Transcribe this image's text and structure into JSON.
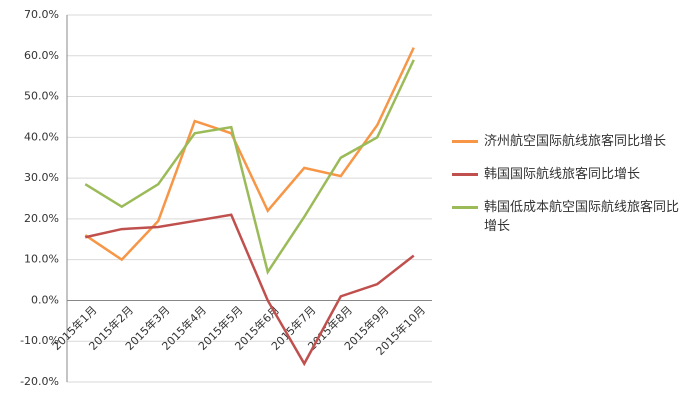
{
  "chart_data": {
    "type": "line",
    "categories": [
      "2015年1月",
      "2015年2月",
      "2015年3月",
      "2015年4月",
      "2015年5月",
      "2015年6月",
      "2015年7月",
      "2015年8月",
      "2015年9月",
      "2015年10月"
    ],
    "series": [
      {
        "name": "济州航空国际航线旅客同比增长",
        "color": "#f79646",
        "values": [
          16,
          10,
          19.5,
          44,
          41,
          22,
          32.5,
          30.5,
          43,
          62
        ]
      },
      {
        "name": "韩国国际航线旅客同比增长",
        "color": "#c0504d",
        "values": [
          15.5,
          17.5,
          18,
          19.5,
          21,
          0,
          -15.5,
          1,
          4,
          11
        ]
      },
      {
        "name": "韩国低成本航空国际航线旅客同比增长",
        "color": "#9bbb59",
        "values": [
          28.5,
          23,
          28.5,
          41,
          42.5,
          7,
          20.5,
          35,
          40,
          59
        ]
      }
    ],
    "ylim": [
      -20,
      70
    ],
    "yticks": [
      {
        "value": -20,
        "label": "-20.0%"
      },
      {
        "value": -10,
        "label": "-10.0%"
      },
      {
        "value": 0,
        "label": "0.0%"
      },
      {
        "value": 10,
        "label": "10.0%"
      },
      {
        "value": 20,
        "label": "20.0%"
      },
      {
        "value": 30,
        "label": "30.0%"
      },
      {
        "value": 40,
        "label": "40.0%"
      },
      {
        "value": 50,
        "label": "50.0%"
      },
      {
        "value": 60,
        "label": "60.0%"
      },
      {
        "value": 70,
        "label": "70.0%"
      }
    ],
    "grid": true,
    "legend": "right"
  }
}
